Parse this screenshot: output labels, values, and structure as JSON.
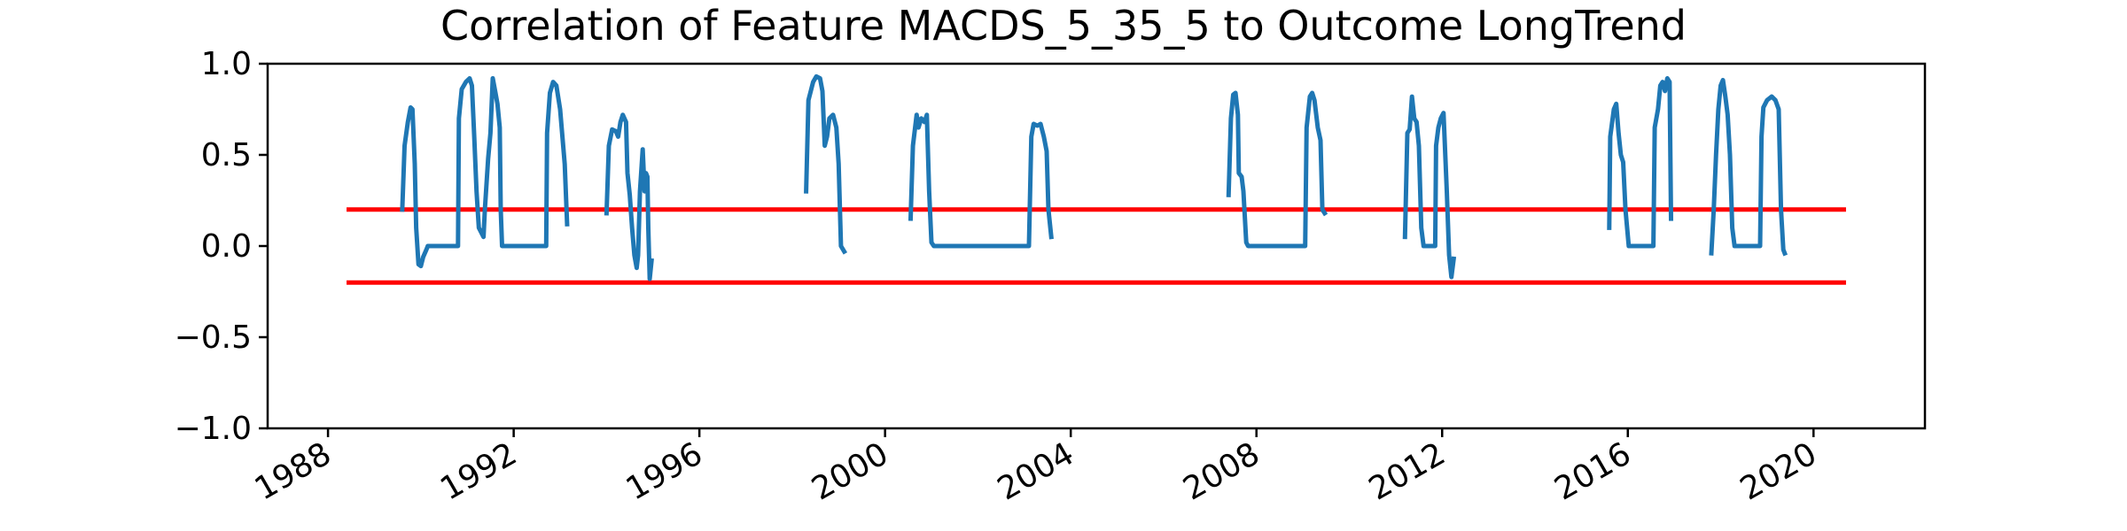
{
  "chart_data": {
    "type": "line",
    "title": "Correlation of Feature MACDS_5_35_5 to Outcome LongTrend",
    "xlabel": "",
    "ylabel": "",
    "xlim": [
      1986.7,
      2022.4
    ],
    "ylim": [
      -1.0,
      1.0
    ],
    "x_tick_labels": [
      "1988",
      "1992",
      "1996",
      "2000",
      "2004",
      "2008",
      "2012",
      "2016",
      "2020"
    ],
    "x_ticks": [
      1988,
      1992,
      1996,
      2000,
      2004,
      2008,
      2012,
      2016,
      2020
    ],
    "y_tick_labels": [
      "1.0",
      "0.5",
      "0.0",
      "−0.5",
      "−1.0"
    ],
    "y_ticks": [
      1.0,
      0.5,
      0.0,
      -0.5,
      -1.0
    ],
    "grid": false,
    "reference_lines": [
      {
        "y": 0.2,
        "x_range": [
          1988.4,
          2020.7
        ],
        "color": "#ff0000"
      },
      {
        "y": -0.2,
        "x_range": [
          1988.4,
          2020.7
        ],
        "color": "#ff0000"
      }
    ],
    "series_color": "#1f77b4",
    "series": [
      {
        "segments": [
          [
            [
              1989.6,
              0.2
            ],
            [
              1989.65,
              0.55
            ],
            [
              1989.72,
              0.68
            ],
            [
              1989.78,
              0.76
            ],
            [
              1989.82,
              0.75
            ],
            [
              1989.87,
              0.45
            ],
            [
              1989.9,
              0.1
            ],
            [
              1989.95,
              -0.1
            ],
            [
              1990.0,
              -0.11
            ],
            [
              1990.05,
              -0.06
            ],
            [
              1990.12,
              -0.02
            ],
            [
              1990.15,
              0.0
            ],
            [
              1990.5,
              0.0
            ],
            [
              1990.8,
              0.0
            ],
            [
              1990.82,
              0.7
            ],
            [
              1990.88,
              0.86
            ],
            [
              1990.97,
              0.9
            ],
            [
              1991.05,
              0.92
            ],
            [
              1991.1,
              0.88
            ],
            [
              1991.15,
              0.6
            ],
            [
              1991.2,
              0.3
            ],
            [
              1991.25,
              0.1
            ],
            [
              1991.35,
              0.05
            ],
            [
              1991.38,
              0.2
            ],
            [
              1991.45,
              0.48
            ],
            [
              1991.5,
              0.62
            ],
            [
              1991.55,
              0.92
            ],
            [
              1991.6,
              0.85
            ],
            [
              1991.65,
              0.78
            ],
            [
              1991.7,
              0.65
            ],
            [
              1991.72,
              0.2
            ],
            [
              1991.75,
              0.0
            ],
            [
              1992.0,
              0.0
            ],
            [
              1992.5,
              0.0
            ],
            [
              1992.7,
              0.0
            ],
            [
              1992.72,
              0.62
            ],
            [
              1992.78,
              0.84
            ],
            [
              1992.85,
              0.9
            ],
            [
              1992.92,
              0.88
            ],
            [
              1993.0,
              0.75
            ],
            [
              1993.05,
              0.6
            ],
            [
              1993.1,
              0.45
            ],
            [
              1993.15,
              0.12
            ]
          ],
          [
            [
              1994.0,
              0.18
            ],
            [
              1994.05,
              0.55
            ],
            [
              1994.12,
              0.64
            ],
            [
              1994.2,
              0.63
            ],
            [
              1994.25,
              0.6
            ],
            [
              1994.3,
              0.68
            ],
            [
              1994.35,
              0.72
            ],
            [
              1994.42,
              0.68
            ],
            [
              1994.45,
              0.4
            ],
            [
              1994.5,
              0.28
            ],
            [
              1994.55,
              0.1
            ],
            [
              1994.6,
              -0.05
            ],
            [
              1994.65,
              -0.12
            ],
            [
              1994.68,
              -0.05
            ],
            [
              1994.72,
              0.3
            ],
            [
              1994.78,
              0.53
            ],
            [
              1994.82,
              0.3
            ],
            [
              1994.85,
              0.4
            ],
            [
              1994.88,
              0.38
            ],
            [
              1994.9,
              0.1
            ],
            [
              1994.93,
              -0.18
            ],
            [
              1994.97,
              -0.08
            ]
          ],
          [
            [
              1998.3,
              0.3
            ],
            [
              1998.35,
              0.8
            ],
            [
              1998.45,
              0.9
            ],
            [
              1998.52,
              0.93
            ],
            [
              1998.6,
              0.92
            ],
            [
              1998.65,
              0.85
            ],
            [
              1998.7,
              0.55
            ],
            [
              1998.75,
              0.6
            ],
            [
              1998.8,
              0.7
            ],
            [
              1998.88,
              0.72
            ],
            [
              1998.95,
              0.65
            ],
            [
              1999.0,
              0.45
            ],
            [
              1999.05,
              0.0
            ],
            [
              1999.12,
              -0.03
            ]
          ],
          [
            [
              2000.55,
              0.15
            ],
            [
              2000.6,
              0.55
            ],
            [
              2000.68,
              0.72
            ],
            [
              2000.72,
              0.65
            ],
            [
              2000.78,
              0.7
            ],
            [
              2000.85,
              0.68
            ],
            [
              2000.9,
              0.72
            ],
            [
              2000.95,
              0.3
            ],
            [
              2001.0,
              0.02
            ],
            [
              2001.05,
              0.0
            ],
            [
              2002.0,
              0.0
            ],
            [
              2003.0,
              0.0
            ],
            [
              2003.1,
              0.0
            ],
            [
              2003.15,
              0.6
            ],
            [
              2003.2,
              0.67
            ],
            [
              2003.28,
              0.66
            ],
            [
              2003.35,
              0.67
            ],
            [
              2003.42,
              0.6
            ],
            [
              2003.48,
              0.52
            ],
            [
              2003.52,
              0.2
            ],
            [
              2003.58,
              0.05
            ]
          ],
          [
            [
              2007.4,
              0.28
            ],
            [
              2007.45,
              0.7
            ],
            [
              2007.5,
              0.83
            ],
            [
              2007.55,
              0.84
            ],
            [
              2007.6,
              0.72
            ],
            [
              2007.62,
              0.4
            ],
            [
              2007.68,
              0.38
            ],
            [
              2007.72,
              0.3
            ],
            [
              2007.78,
              0.02
            ],
            [
              2007.82,
              0.0
            ],
            [
              2008.5,
              0.0
            ],
            [
              2009.0,
              0.0
            ],
            [
              2009.05,
              0.0
            ],
            [
              2009.08,
              0.65
            ],
            [
              2009.15,
              0.82
            ],
            [
              2009.2,
              0.84
            ],
            [
              2009.25,
              0.8
            ],
            [
              2009.32,
              0.65
            ],
            [
              2009.38,
              0.58
            ],
            [
              2009.42,
              0.2
            ],
            [
              2009.47,
              0.18
            ]
          ],
          [
            [
              2011.2,
              0.05
            ],
            [
              2011.25,
              0.62
            ],
            [
              2011.3,
              0.64
            ],
            [
              2011.35,
              0.82
            ],
            [
              2011.4,
              0.7
            ],
            [
              2011.45,
              0.68
            ],
            [
              2011.5,
              0.55
            ],
            [
              2011.55,
              0.1
            ],
            [
              2011.6,
              0.0
            ],
            [
              2011.85,
              0.0
            ],
            [
              2011.87,
              0.55
            ],
            [
              2011.92,
              0.65
            ],
            [
              2011.97,
              0.7
            ],
            [
              2012.03,
              0.73
            ],
            [
              2012.1,
              0.3
            ],
            [
              2012.15,
              -0.05
            ],
            [
              2012.2,
              -0.17
            ],
            [
              2012.25,
              -0.07
            ]
          ],
          [
            [
              2015.6,
              0.1
            ],
            [
              2015.62,
              0.6
            ],
            [
              2015.7,
              0.75
            ],
            [
              2015.75,
              0.78
            ],
            [
              2015.8,
              0.62
            ],
            [
              2015.85,
              0.5
            ],
            [
              2015.9,
              0.46
            ],
            [
              2015.95,
              0.2
            ],
            [
              2016.02,
              0.0
            ],
            [
              2016.5,
              0.0
            ],
            [
              2016.55,
              0.0
            ],
            [
              2016.58,
              0.65
            ],
            [
              2016.65,
              0.75
            ],
            [
              2016.7,
              0.88
            ],
            [
              2016.75,
              0.9
            ],
            [
              2016.8,
              0.85
            ],
            [
              2016.85,
              0.92
            ],
            [
              2016.9,
              0.9
            ],
            [
              2016.93,
              0.15
            ]
          ],
          [
            [
              2017.8,
              -0.04
            ],
            [
              2017.85,
              0.2
            ],
            [
              2017.9,
              0.5
            ],
            [
              2017.95,
              0.75
            ],
            [
              2018.0,
              0.88
            ],
            [
              2018.05,
              0.91
            ],
            [
              2018.1,
              0.82
            ],
            [
              2018.15,
              0.72
            ],
            [
              2018.2,
              0.5
            ],
            [
              2018.25,
              0.1
            ],
            [
              2018.3,
              0.0
            ],
            [
              2018.8,
              0.0
            ],
            [
              2018.85,
              0.0
            ],
            [
              2018.88,
              0.6
            ],
            [
              2018.92,
              0.76
            ],
            [
              2019.0,
              0.8
            ],
            [
              2019.1,
              0.82
            ],
            [
              2019.18,
              0.8
            ],
            [
              2019.25,
              0.75
            ],
            [
              2019.3,
              0.2
            ],
            [
              2019.35,
              -0.02
            ],
            [
              2019.38,
              -0.04
            ]
          ]
        ]
      }
    ]
  }
}
